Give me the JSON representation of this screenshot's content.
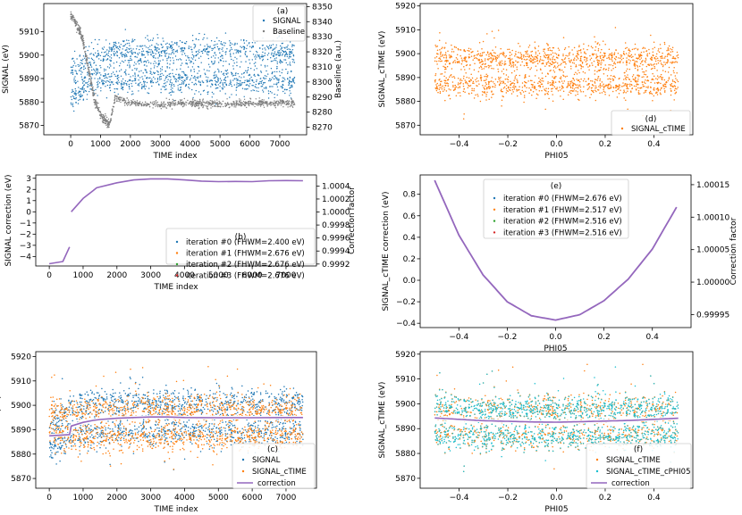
{
  "colors": {
    "blue": "#1f77b4",
    "orange": "#ff7f0e",
    "green": "#2ca02c",
    "red": "#d62728",
    "purple": "#9467bd",
    "gray": "#7f7f7f",
    "teal": "#17becf"
  },
  "chart_data": [
    {
      "id": "a",
      "type": "scatter",
      "panel_label": "(a)",
      "xlabel": "TIME index",
      "ylabel": "SIGNAL (eV)",
      "y2label": "Baseline (a.u.)",
      "xlim": [
        -900,
        7900
      ],
      "ylim": [
        5866,
        5922
      ],
      "y2lim": [
        8265,
        8352
      ],
      "xticks": [
        0,
        1000,
        2000,
        3000,
        4000,
        5000,
        6000,
        7000
      ],
      "yticks": [
        5870,
        5880,
        5890,
        5900,
        5910
      ],
      "y2ticks": [
        8270,
        8280,
        8290,
        8300,
        8310,
        8320,
        8330,
        8340,
        8350
      ],
      "legend": [
        "SIGNAL",
        "Baseline"
      ],
      "series": [
        {
          "name": "SIGNAL",
          "axis": "left",
          "upper_band": {
            "x": [
              0,
              250,
              500,
              700,
              1000,
              2000,
              4000,
              7500
            ],
            "y": [
              5892,
              5894,
              5897,
              5899,
              5901,
              5901,
              5901,
              5901
            ]
          },
          "lower_band": {
            "x": [
              0,
              250,
              500,
              700,
              1000,
              2000,
              4000,
              7500
            ],
            "y": [
              5881,
              5884,
              5887,
              5889,
              5889,
              5889,
              5889,
              5889
            ]
          }
        },
        {
          "name": "Baseline",
          "axis": "right",
          "x": [
            0,
            100,
            200,
            300,
            400,
            500,
            600,
            700,
            800,
            1000,
            1300,
            1500,
            2000,
            3000,
            4000,
            5000,
            6000,
            7000,
            7500
          ],
          "y": [
            8344,
            8342,
            8338,
            8334,
            8328,
            8318,
            8308,
            8298,
            8288,
            8278,
            8272,
            8290,
            8286,
            8285,
            8286,
            8285,
            8286,
            8286,
            8286
          ]
        }
      ]
    },
    {
      "id": "d",
      "type": "scatter",
      "panel_label": "(d)",
      "xlabel": "PHI05",
      "ylabel": "SIGNAL_cTIME (eV)",
      "xlim": [
        -0.56,
        0.56
      ],
      "ylim": [
        5866,
        5921
      ],
      "xticks": [
        -0.4,
        -0.2,
        0.0,
        0.2,
        0.4
      ],
      "xtick_labels": [
        "−0.4",
        "−0.2",
        "0.0",
        "0.2",
        "0.4"
      ],
      "yticks": [
        5870,
        5880,
        5890,
        5900,
        5910,
        5920
      ],
      "legend": [
        "SIGNAL_cTIME"
      ],
      "series": [
        {
          "name": "SIGNAL_cTIME",
          "bands": [
            5898,
            5887
          ],
          "x_range": [
            -0.5,
            0.5
          ]
        }
      ]
    },
    {
      "id": "b",
      "type": "line",
      "panel_label": "(b)",
      "xlabel": "TIME index",
      "ylabel": "SIGNAL correction (eV)",
      "y2label": "Correction factor",
      "xlim": [
        -400,
        7900
      ],
      "ylim": [
        -4.85,
        3.3
      ],
      "y2lim": [
        0.99917,
        1.00057
      ],
      "xticks": [
        0,
        1000,
        2000,
        3000,
        4000,
        5000,
        6000,
        7000
      ],
      "yticks": [
        -4,
        -3,
        -2,
        -1,
        0,
        1,
        2,
        3
      ],
      "yticks_labels": [
        "−4",
        "−3",
        "−2",
        "−1",
        "0",
        "1",
        "2",
        "3"
      ],
      "y2ticks": [
        0.9992,
        0.9994,
        0.9996,
        0.9998,
        1.0,
        1.0002,
        1.0004
      ],
      "y2tick_labels": [
        "0.9992",
        "0.9994",
        "0.9996",
        "0.9998",
        "1.0000",
        "1.0002",
        "1.0004"
      ],
      "legend": [
        "iteration #0 (FHWM=2.400 eV)",
        "iteration #1 (FHWM=2.676 eV)",
        "iteration #2 (FHWM=2.676 eV)",
        "iteration #3 (FHWM=2.676 eV)"
      ],
      "segments": [
        {
          "x": [
            0,
            400,
            600
          ],
          "y": [
            -4.65,
            -4.45,
            -3.15
          ]
        },
        {
          "x": [
            650,
            1000,
            1300,
            1400,
            2000,
            2500,
            3000,
            3500,
            4000,
            4500,
            5000,
            5500,
            6000,
            6500,
            7000,
            7500
          ],
          "y": [
            0.0,
            1.2,
            1.9,
            2.15,
            2.6,
            2.85,
            2.95,
            2.95,
            2.85,
            2.75,
            2.7,
            2.72,
            2.7,
            2.78,
            2.8,
            2.78
          ]
        }
      ]
    },
    {
      "id": "e",
      "type": "line",
      "panel_label": "(e)",
      "xlabel": "PHI05",
      "ylabel": "SIGNAL_cTIME correction (eV)",
      "y2label": "Correction factor",
      "xlim": [
        -0.56,
        0.56
      ],
      "ylim": [
        -0.44,
        0.98
      ],
      "y2lim": [
        0.99993,
        1.000165
      ],
      "xticks": [
        -0.4,
        -0.2,
        0.0,
        0.2,
        0.4
      ],
      "xtick_labels": [
        "−0.4",
        "−0.2",
        "0.0",
        "0.2",
        "0.4"
      ],
      "yticks": [
        -0.4,
        -0.2,
        0.0,
        0.2,
        0.4,
        0.6,
        0.8
      ],
      "ytick_labels": [
        "−0.4",
        "−0.2",
        "0.0",
        "0.2",
        "0.4",
        "0.6",
        "0.8"
      ],
      "y2ticks": [
        0.99995,
        1.0,
        1.00005,
        1.0001,
        1.00015
      ],
      "y2tick_labels": [
        "0.99995",
        "1.00000",
        "1.00005",
        "1.00010",
        "1.00015"
      ],
      "legend": [
        "iteration #0 (FHWM=2.676 eV)",
        "iteration #1 (FHWM=2.517 eV)",
        "iteration #2 (FHWM=2.516 eV)",
        "iteration #3 (FHWM=2.516 eV)"
      ],
      "curve": {
        "x": [
          -0.5,
          -0.4,
          -0.3,
          -0.2,
          -0.1,
          0.0,
          0.1,
          0.2,
          0.3,
          0.4,
          0.5
        ],
        "y": [
          0.93,
          0.42,
          0.05,
          -0.2,
          -0.33,
          -0.37,
          -0.32,
          -0.19,
          0.01,
          0.29,
          0.68
        ]
      }
    },
    {
      "id": "c",
      "type": "scatter",
      "panel_label": "(c)",
      "xlabel": "TIME index",
      "ylabel": "SIGNAL (eV)",
      "xlim": [
        -400,
        7900
      ],
      "ylim": [
        5866,
        5922
      ],
      "xticks": [
        0,
        1000,
        2000,
        3000,
        4000,
        5000,
        6000,
        7000
      ],
      "yticks": [
        5870,
        5880,
        5890,
        5900,
        5910,
        5920
      ],
      "legend": [
        "SIGNAL",
        "SIGNAL_cTIME",
        "correction"
      ],
      "correction": {
        "x": [
          0,
          600,
          650,
          1000,
          1300,
          1500,
          2000,
          2500,
          3000,
          3500,
          4000,
          5000,
          6000,
          7000,
          7500
        ],
        "y": [
          5887.5,
          5888.0,
          5891.5,
          5893.0,
          5893.8,
          5894.2,
          5894.7,
          5895.0,
          5895.2,
          5895.2,
          5895.0,
          5894.9,
          5894.9,
          5895.0,
          5895.0
        ]
      }
    },
    {
      "id": "f",
      "type": "scatter",
      "panel_label": "(f)",
      "xlabel": "PHI05",
      "ylabel": "SIGNAL_cTIME (eV)",
      "xlim": [
        -0.56,
        0.56
      ],
      "ylim": [
        5866,
        5921
      ],
      "xticks": [
        -0.4,
        -0.2,
        0.0,
        0.2,
        0.4
      ],
      "xtick_labels": [
        "−0.4",
        "−0.2",
        "0.0",
        "0.2",
        "0.4"
      ],
      "yticks": [
        5870,
        5880,
        5890,
        5900,
        5910,
        5920
      ],
      "legend": [
        "SIGNAL_cTIME",
        "SIGNAL_cTIME_cPHI05",
        "correction"
      ],
      "correction": {
        "x": [
          -0.5,
          -0.3,
          -0.1,
          0.0,
          0.1,
          0.3,
          0.5
        ],
        "y": [
          5894.3,
          5893.2,
          5892.7,
          5892.6,
          5892.8,
          5893.3,
          5894.2
        ]
      }
    }
  ]
}
